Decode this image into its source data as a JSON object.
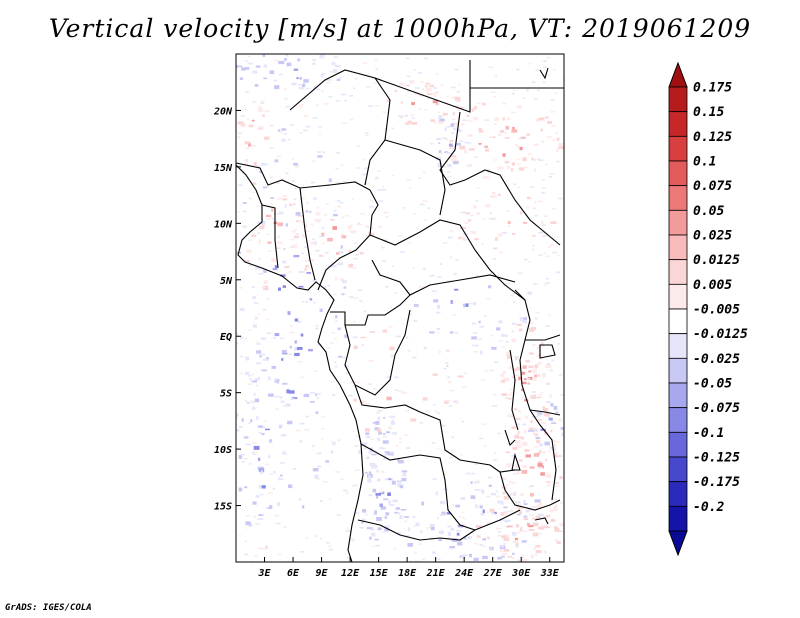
{
  "title": "Vertical velocity [m/s] at 1000hPa, VT: 2019061209",
  "footer": "GrADS: IGES/COLA",
  "map": {
    "lon_range": [
      0,
      34.5
    ],
    "lat_range": [
      -20,
      25
    ],
    "lon_ticks": [
      {
        "value": 3,
        "label": "3E"
      },
      {
        "value": 6,
        "label": "6E"
      },
      {
        "value": 9,
        "label": "9E"
      },
      {
        "value": 12,
        "label": "12E"
      },
      {
        "value": 15,
        "label": "15E"
      },
      {
        "value": 18,
        "label": "18E"
      },
      {
        "value": 21,
        "label": "21E"
      },
      {
        "value": 24,
        "label": "24E"
      },
      {
        "value": 27,
        "label": "27E"
      },
      {
        "value": 30,
        "label": "30E"
      },
      {
        "value": 33,
        "label": "33E"
      }
    ],
    "lat_ticks": [
      {
        "value": 20,
        "label": "20N"
      },
      {
        "value": 15,
        "label": "15N"
      },
      {
        "value": 10,
        "label": "10N"
      },
      {
        "value": 5,
        "label": "5N"
      },
      {
        "value": 0,
        "label": "EQ"
      },
      {
        "value": -5,
        "label": "5S"
      },
      {
        "value": -10,
        "label": "10S"
      },
      {
        "value": -15,
        "label": "15S"
      }
    ]
  },
  "colorbar": {
    "levels": [
      {
        "label": "0.175",
        "color": "#b71c1c"
      },
      {
        "label": "0.15",
        "color": "#c62828"
      },
      {
        "label": "0.125",
        "color": "#d84040"
      },
      {
        "label": "0.1",
        "color": "#e35b5b"
      },
      {
        "label": "0.075",
        "color": "#ec7878"
      },
      {
        "label": "0.05",
        "color": "#f39a9a"
      },
      {
        "label": "0.025",
        "color": "#f8baba"
      },
      {
        "label": "0.0125",
        "color": "#fbd6d6"
      },
      {
        "label": "0.005",
        "color": "#fdeaea"
      },
      {
        "label": "-0.005",
        "color": "#ffffff"
      },
      {
        "label": "-0.0125",
        "color": "#e6e6fb"
      },
      {
        "label": "-0.025",
        "color": "#c8c8f5"
      },
      {
        "label": "-0.05",
        "color": "#a8a8ef"
      },
      {
        "label": "-0.075",
        "color": "#8888e6"
      },
      {
        "label": "-0.1",
        "color": "#6868dc"
      },
      {
        "label": "-0.125",
        "color": "#4848cf"
      },
      {
        "label": "-0.175",
        "color": "#2a2abd"
      },
      {
        "label": "-0.2",
        "color": "#1414a8"
      }
    ],
    "top_cap_color": "#a01010",
    "bottom_cap_color": "#0a0a96"
  }
}
